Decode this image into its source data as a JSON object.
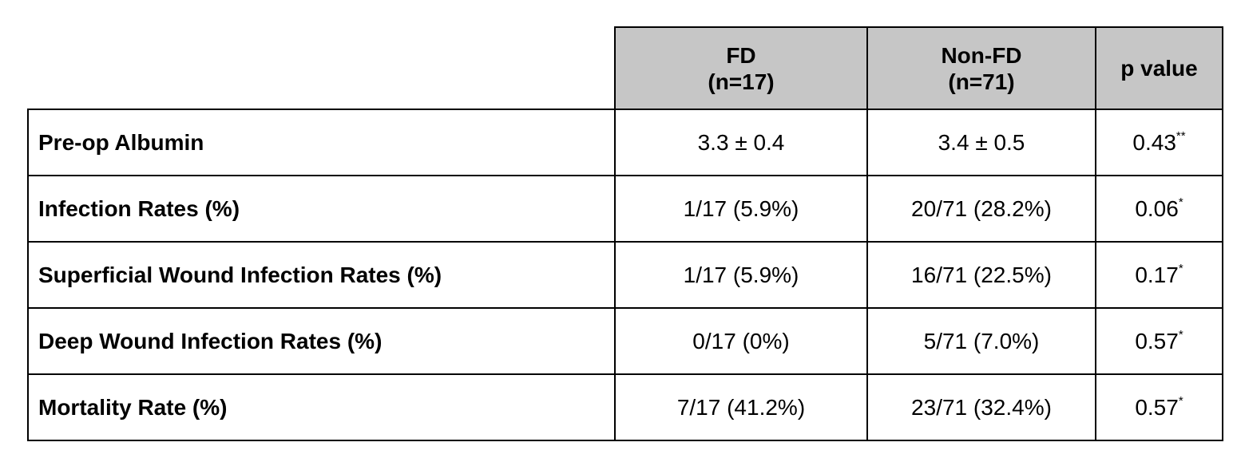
{
  "columns": [
    {
      "line1": "FD",
      "line2": "(n=17)"
    },
    {
      "line1": "Non-FD",
      "line2": "(n=71)"
    },
    {
      "line1": "p value",
      "line2": ""
    }
  ],
  "rows": [
    {
      "label": "Pre-op Albumin",
      "fd": "3.3 ± 0.4",
      "nonfd": "3.4 ± 0.5",
      "p": "0.43",
      "p_mark": "**"
    },
    {
      "label": "Infection Rates (%)",
      "fd": "1/17 (5.9%)",
      "nonfd": "20/71 (28.2%)",
      "p": "0.06",
      "p_mark": "*"
    },
    {
      "label": "Superficial Wound Infection Rates (%)",
      "fd": "1/17 (5.9%)",
      "nonfd": "16/71 (22.5%)",
      "p": "0.17",
      "p_mark": "*"
    },
    {
      "label": "Deep Wound Infection Rates (%)",
      "fd": "0/17 (0%)",
      "nonfd": "5/71 (7.0%)",
      "p": "0.57",
      "p_mark": "*"
    },
    {
      "label": "Mortality Rate (%)",
      "fd": "7/17 (41.2%)",
      "nonfd": "23/71 (32.4%)",
      "p": "0.57",
      "p_mark": "*"
    }
  ],
  "chart_data": {
    "type": "table",
    "columns": [
      "",
      "FD (n=17)",
      "Non-FD (n=71)",
      "p value"
    ],
    "rows": [
      [
        "Pre-op Albumin",
        "3.3 ± 0.4",
        "3.4 ± 0.5",
        "0.43**"
      ],
      [
        "Infection Rates (%)",
        "1/17 (5.9%)",
        "20/71 (28.2%)",
        "0.06*"
      ],
      [
        "Superficial Wound Infection Rates (%)",
        "1/17 (5.9%)",
        "16/71 (22.5%)",
        "0.17*"
      ],
      [
        "Deep Wound Infection Rates (%)",
        "0/17 (0%)",
        "5/71 (7.0%)",
        "0.57*"
      ],
      [
        "Mortality Rate (%)",
        "7/17 (41.2%)",
        "23/71 (32.4%)",
        "0.57*"
      ]
    ]
  }
}
